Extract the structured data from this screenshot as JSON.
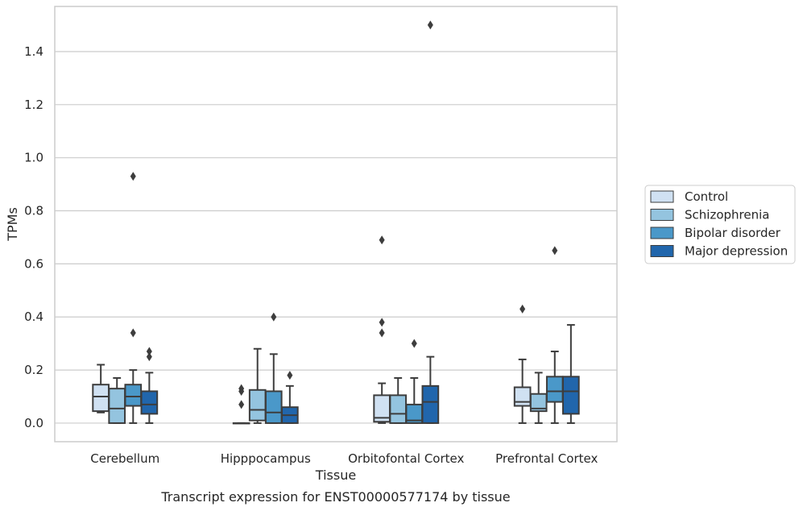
{
  "caption": "Transcript expression for ENST00000577174 by tissue",
  "chart_data": {
    "type": "box",
    "title": "",
    "xlabel": "Tissue",
    "ylabel": "TPMs",
    "ylim": [
      -0.07,
      1.57
    ],
    "yticks": [
      0.0,
      0.2,
      0.4,
      0.6,
      0.8,
      1.0,
      1.2,
      1.4
    ],
    "ytick_labels": [
      "0.0",
      "0.2",
      "0.4",
      "0.6",
      "0.8",
      "1.0",
      "1.2",
      "1.4"
    ],
    "grid": "horizontal",
    "legend_position": "right",
    "categories": [
      "Cerebellum",
      "Hipppocampus",
      "Orbitofontal Cortex",
      "Prefrontal Cortex"
    ],
    "series": [
      {
        "name": "Control",
        "color": "#d0e1f2",
        "boxes": [
          {
            "whislo": 0.04,
            "q1": 0.045,
            "med": 0.1,
            "q3": 0.145,
            "whishi": 0.22,
            "fliers": []
          },
          {
            "whislo": 0.0,
            "q1": 0.0,
            "med": 0.0,
            "q3": 0.0,
            "whishi": 0.0,
            "fliers": [
              0.07,
              0.12,
              0.13
            ]
          },
          {
            "whislo": 0.0,
            "q1": 0.005,
            "med": 0.02,
            "q3": 0.105,
            "whishi": 0.15,
            "fliers": [
              0.34,
              0.38,
              0.69
            ]
          },
          {
            "whislo": 0.0,
            "q1": 0.065,
            "med": 0.08,
            "q3": 0.135,
            "whishi": 0.24,
            "fliers": [
              0.43
            ]
          }
        ]
      },
      {
        "name": "Schizophrenia",
        "color": "#94c4df",
        "boxes": [
          {
            "whislo": 0.0,
            "q1": 0.0,
            "med": 0.055,
            "q3": 0.13,
            "whishi": 0.17,
            "fliers": []
          },
          {
            "whislo": 0.0,
            "q1": 0.01,
            "med": 0.05,
            "q3": 0.125,
            "whishi": 0.28,
            "fliers": []
          },
          {
            "whislo": 0.0,
            "q1": 0.0,
            "med": 0.035,
            "q3": 0.105,
            "whishi": 0.17,
            "fliers": []
          },
          {
            "whislo": 0.0,
            "q1": 0.045,
            "med": 0.055,
            "q3": 0.11,
            "whishi": 0.19,
            "fliers": []
          }
        ]
      },
      {
        "name": "Bipolar disorder",
        "color": "#4a98c9",
        "boxes": [
          {
            "whislo": 0.0,
            "q1": 0.065,
            "med": 0.1,
            "q3": 0.145,
            "whishi": 0.2,
            "fliers": [
              0.34,
              0.93
            ]
          },
          {
            "whislo": 0.0,
            "q1": 0.0,
            "med": 0.04,
            "q3": 0.12,
            "whishi": 0.26,
            "fliers": [
              0.4
            ]
          },
          {
            "whislo": 0.0,
            "q1": 0.0,
            "med": 0.01,
            "q3": 0.07,
            "whishi": 0.17,
            "fliers": [
              0.3
            ]
          },
          {
            "whislo": 0.0,
            "q1": 0.08,
            "med": 0.12,
            "q3": 0.175,
            "whishi": 0.27,
            "fliers": [
              0.65
            ]
          }
        ]
      },
      {
        "name": "Major depression",
        "color": "#2166ac",
        "boxes": [
          {
            "whislo": 0.0,
            "q1": 0.035,
            "med": 0.07,
            "q3": 0.12,
            "whishi": 0.19,
            "fliers": [
              0.25,
              0.27
            ]
          },
          {
            "whislo": 0.0,
            "q1": 0.0,
            "med": 0.03,
            "q3": 0.06,
            "whishi": 0.14,
            "fliers": [
              0.18
            ]
          },
          {
            "whislo": 0.0,
            "q1": 0.0,
            "med": 0.08,
            "q3": 0.14,
            "whishi": 0.25,
            "fliers": [
              1.5
            ]
          },
          {
            "whislo": 0.0,
            "q1": 0.035,
            "med": 0.12,
            "q3": 0.175,
            "whishi": 0.37,
            "fliers": []
          }
        ]
      }
    ]
  }
}
